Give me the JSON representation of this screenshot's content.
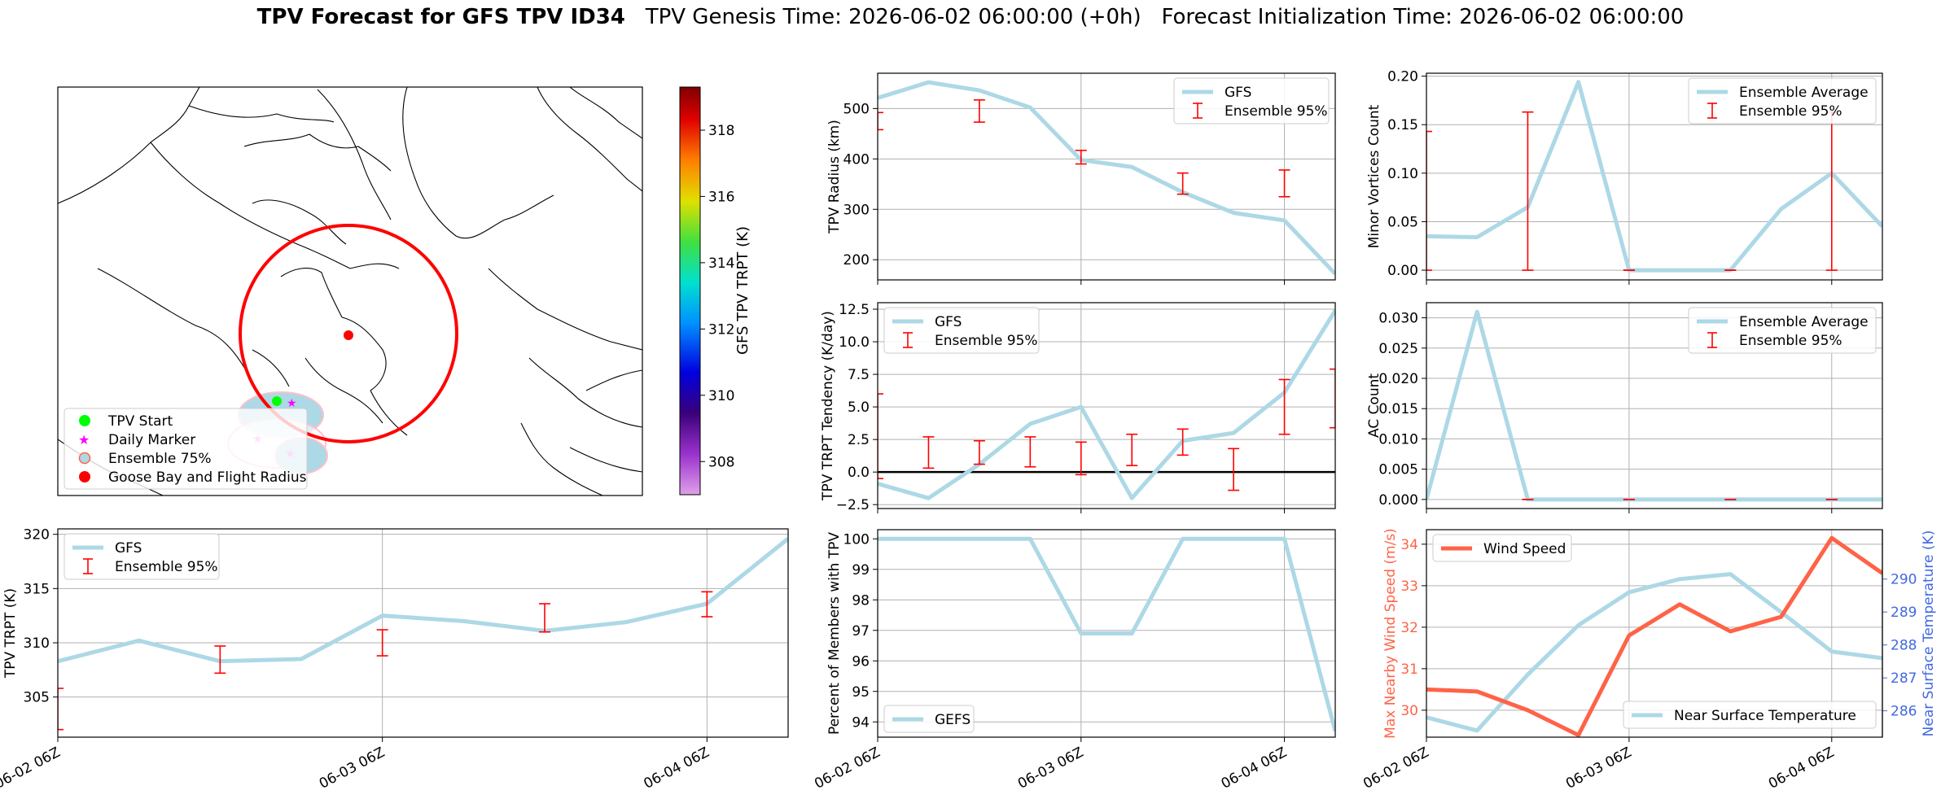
{
  "figure": {
    "title_bold": "TPV Forecast for GFS TPV ID34",
    "title_genesis": "TPV Genesis Time: 2026-06-02 06:00:00 (+0h)",
    "title_init": "Forecast Initialization Time: 2026-06-02 06:00:00"
  },
  "colors": {
    "gfs_line": "#add8e6",
    "error_bar": "#ff0000",
    "wind": "#ff6347",
    "temp_axis": "#4169e1",
    "grid": "#b0b0b0",
    "map_circle": "#ff0000",
    "start_marker": "#00ff00",
    "daily_marker": "#ff00ff"
  },
  "map": {
    "colorbar_label": "GFS TPV TRPT (K)",
    "colorbar_ticks": [
      308,
      310,
      312,
      314,
      316,
      318
    ],
    "colorbar_range": [
      307,
      319.3
    ],
    "legend": [
      "TPV Start",
      "Daily Marker",
      "Ensemble 75%",
      "Goose Bay and Flight Radius"
    ]
  },
  "chart_data": [
    {
      "id": "trpt",
      "type": "line",
      "ylabel": "TPV TRPT (K)",
      "x": [
        0,
        1,
        2,
        3,
        4,
        5,
        6,
        7,
        8,
        9
      ],
      "xticks": [
        {
          "x": 0,
          "label": "06-02 06Z"
        },
        {
          "x": 4,
          "label": "06-03 06Z"
        },
        {
          "x": 8,
          "label": "06-04 06Z"
        }
      ],
      "xlim": [
        0,
        9
      ],
      "ylim": [
        301.3,
        320.5
      ],
      "yticks": [
        305,
        310,
        315,
        320
      ],
      "grid": true,
      "legend_loc": "upper left",
      "series": [
        {
          "name": "GFS",
          "values": [
            308.3,
            310.2,
            308.3,
            308.5,
            312.5,
            312.0,
            311.1,
            311.9,
            313.6,
            319.6
          ]
        }
      ],
      "errorbars": {
        "name": "Ensemble 95%",
        "x": [
          0,
          2,
          4,
          6,
          8
        ],
        "low": [
          302.0,
          307.2,
          308.8,
          311.0,
          312.4
        ],
        "high": [
          305.8,
          309.7,
          311.2,
          313.6,
          314.7
        ]
      }
    },
    {
      "id": "radius",
      "type": "line",
      "ylabel": "TPV Radius (km)",
      "x": [
        0,
        1,
        2,
        3,
        4,
        5,
        6,
        7,
        8,
        9
      ],
      "xticks": [
        {
          "x": 0,
          "label": "06-02 06Z"
        },
        {
          "x": 4,
          "label": "06-03 06Z"
        },
        {
          "x": 8,
          "label": "06-04 06Z"
        }
      ],
      "xlim": [
        0,
        9
      ],
      "ylim": [
        160,
        570
      ],
      "yticks": [
        200,
        300,
        400,
        500
      ],
      "grid": true,
      "legend_loc": "upper right",
      "series": [
        {
          "name": "GFS",
          "values": [
            521,
            552,
            536,
            502,
            398,
            384,
            334,
            293,
            278,
            172
          ]
        }
      ],
      "errorbars": {
        "name": "Ensemble 95%",
        "x": [
          0,
          2,
          4,
          6,
          8
        ],
        "low": [
          458,
          473,
          390,
          330,
          325
        ],
        "high": [
          492,
          517,
          417,
          372,
          378
        ]
      }
    },
    {
      "id": "tendency",
      "type": "line",
      "ylabel": "TPV TRPT Tendency (K/day)",
      "x": [
        0,
        1,
        2,
        3,
        4,
        5,
        6,
        7,
        8,
        9
      ],
      "xticks": [
        {
          "x": 0,
          "label": "06-02 06Z"
        },
        {
          "x": 4,
          "label": "06-03 06Z"
        },
        {
          "x": 8,
          "label": "06-04 06Z"
        }
      ],
      "xlim": [
        0,
        9
      ],
      "ylim": [
        -2.8,
        13
      ],
      "yticks": [
        -2.5,
        0.0,
        2.5,
        5.0,
        7.5,
        10.0,
        12.5
      ],
      "ytick_labels": [
        "−2.5",
        "0.0",
        "2.5",
        "5.0",
        "7.5",
        "10.0",
        "12.5"
      ],
      "zero_line": true,
      "grid": true,
      "legend_loc": "upper left",
      "series": [
        {
          "name": "GFS",
          "values": [
            -0.9,
            -2.0,
            0.6,
            3.7,
            5.0,
            -2.0,
            2.4,
            3.0,
            6.1,
            12.4
          ]
        }
      ],
      "errorbars": {
        "name": "Ensemble 95%",
        "x": [
          0,
          1,
          2,
          3,
          4,
          5,
          6,
          7,
          8,
          9
        ],
        "low": [
          -0.5,
          0.3,
          0.6,
          0.4,
          -0.2,
          0.5,
          1.3,
          -1.4,
          2.9,
          3.4
        ],
        "high": [
          6.0,
          2.7,
          2.4,
          2.7,
          2.3,
          2.9,
          3.3,
          1.8,
          7.1,
          7.9
        ]
      }
    },
    {
      "id": "members",
      "type": "line",
      "ylabel": "Percent of Members with TPV",
      "x": [
        0,
        1,
        2,
        3,
        4,
        5,
        6,
        7,
        8,
        9
      ],
      "xticks": [
        {
          "x": 0,
          "label": "06-02 06Z"
        },
        {
          "x": 4,
          "label": "06-03 06Z"
        },
        {
          "x": 8,
          "label": "06-04 06Z"
        }
      ],
      "xlim": [
        0,
        9
      ],
      "ylim": [
        93.5,
        100.3
      ],
      "yticks": [
        94,
        95,
        96,
        97,
        98,
        99,
        100
      ],
      "grid": true,
      "legend_loc": "lower left",
      "series": [
        {
          "name": "GEFS",
          "values": [
            100,
            100,
            100,
            100,
            96.9,
            96.9,
            100,
            100,
            100,
            93.7
          ]
        }
      ]
    },
    {
      "id": "minor",
      "type": "line",
      "ylabel": "Minor Vortices Count",
      "x": [
        0,
        1,
        2,
        3,
        4,
        5,
        6,
        7,
        8,
        9
      ],
      "xticks": [
        {
          "x": 0,
          "label": "06-02 06Z"
        },
        {
          "x": 4,
          "label": "06-03 06Z"
        },
        {
          "x": 8,
          "label": "06-04 06Z"
        }
      ],
      "xlim": [
        0,
        9
      ],
      "ylim": [
        -0.01,
        0.203
      ],
      "yticks": [
        0.0,
        0.05,
        0.1,
        0.15,
        0.2
      ],
      "ytick_labels": [
        "0.00",
        "0.05",
        "0.10",
        "0.15",
        "0.20"
      ],
      "grid": true,
      "legend_loc": "upper right",
      "series": [
        {
          "name": "Ensemble Average",
          "values": [
            0.035,
            0.034,
            0.065,
            0.194,
            0.0,
            0.0,
            0.0,
            0.063,
            0.1,
            0.045
          ]
        }
      ],
      "errorbars": {
        "name": "Ensemble 95%",
        "x": [
          0,
          2,
          4,
          6,
          8
        ],
        "low": [
          0.0,
          0.0,
          0.0,
          0.0,
          0.0
        ],
        "high": [
          0.143,
          0.163,
          0.0,
          0.0,
          0.163
        ]
      }
    },
    {
      "id": "ac",
      "type": "line",
      "ylabel": "AC Count",
      "x": [
        0,
        1,
        2,
        3,
        4,
        5,
        6,
        7,
        8,
        9
      ],
      "xticks": [
        {
          "x": 0,
          "label": "06-02 06Z"
        },
        {
          "x": 4,
          "label": "06-03 06Z"
        },
        {
          "x": 8,
          "label": "06-04 06Z"
        }
      ],
      "xlim": [
        0,
        9
      ],
      "ylim": [
        -0.0015,
        0.0325
      ],
      "yticks": [
        0.0,
        0.005,
        0.01,
        0.015,
        0.02,
        0.025,
        0.03
      ],
      "ytick_labels": [
        "0.000",
        "0.005",
        "0.010",
        "0.015",
        "0.020",
        "0.025",
        "0.030"
      ],
      "grid": true,
      "legend_loc": "upper right",
      "series": [
        {
          "name": "Ensemble Average",
          "values": [
            0.0,
            0.031,
            0.0,
            0.0,
            0.0,
            0.0,
            0.0,
            0.0,
            0.0,
            0.0
          ]
        }
      ],
      "errorbars": {
        "name": "Ensemble 95%",
        "x": [
          2,
          4,
          6,
          8
        ],
        "low": [
          0,
          0,
          0,
          0
        ],
        "high": [
          0,
          0,
          0,
          0
        ]
      }
    },
    {
      "id": "wind",
      "type": "line",
      "ylabel": "Max Nearby Wind Speed (m/s)",
      "ylabel_right": "Near Surface Temperature (K)",
      "x": [
        0,
        1,
        2,
        3,
        4,
        5,
        6,
        7,
        8,
        9
      ],
      "xticks": [
        {
          "x": 0,
          "label": "06-02 06Z"
        },
        {
          "x": 4,
          "label": "06-03 06Z"
        },
        {
          "x": 8,
          "label": "06-04 06Z"
        }
      ],
      "xlim": [
        0,
        9
      ],
      "ylim": [
        29.35,
        34.35
      ],
      "yticks": [
        30,
        31,
        32,
        33,
        34
      ],
      "ylim_right": [
        285.2,
        291.5
      ],
      "yticks_right": [
        286,
        287,
        288,
        289,
        290
      ],
      "grid": true,
      "series": [
        {
          "name": "Wind Speed",
          "axis": "left",
          "values": [
            30.5,
            30.45,
            30.0,
            29.4,
            31.8,
            32.55,
            31.9,
            32.25,
            34.15,
            33.3
          ]
        },
        {
          "name": "Near Surface Temperature",
          "axis": "right",
          "values": [
            285.8,
            285.4,
            287.1,
            288.6,
            289.6,
            290.0,
            290.15,
            289.0,
            287.8,
            287.6
          ]
        }
      ]
    }
  ]
}
